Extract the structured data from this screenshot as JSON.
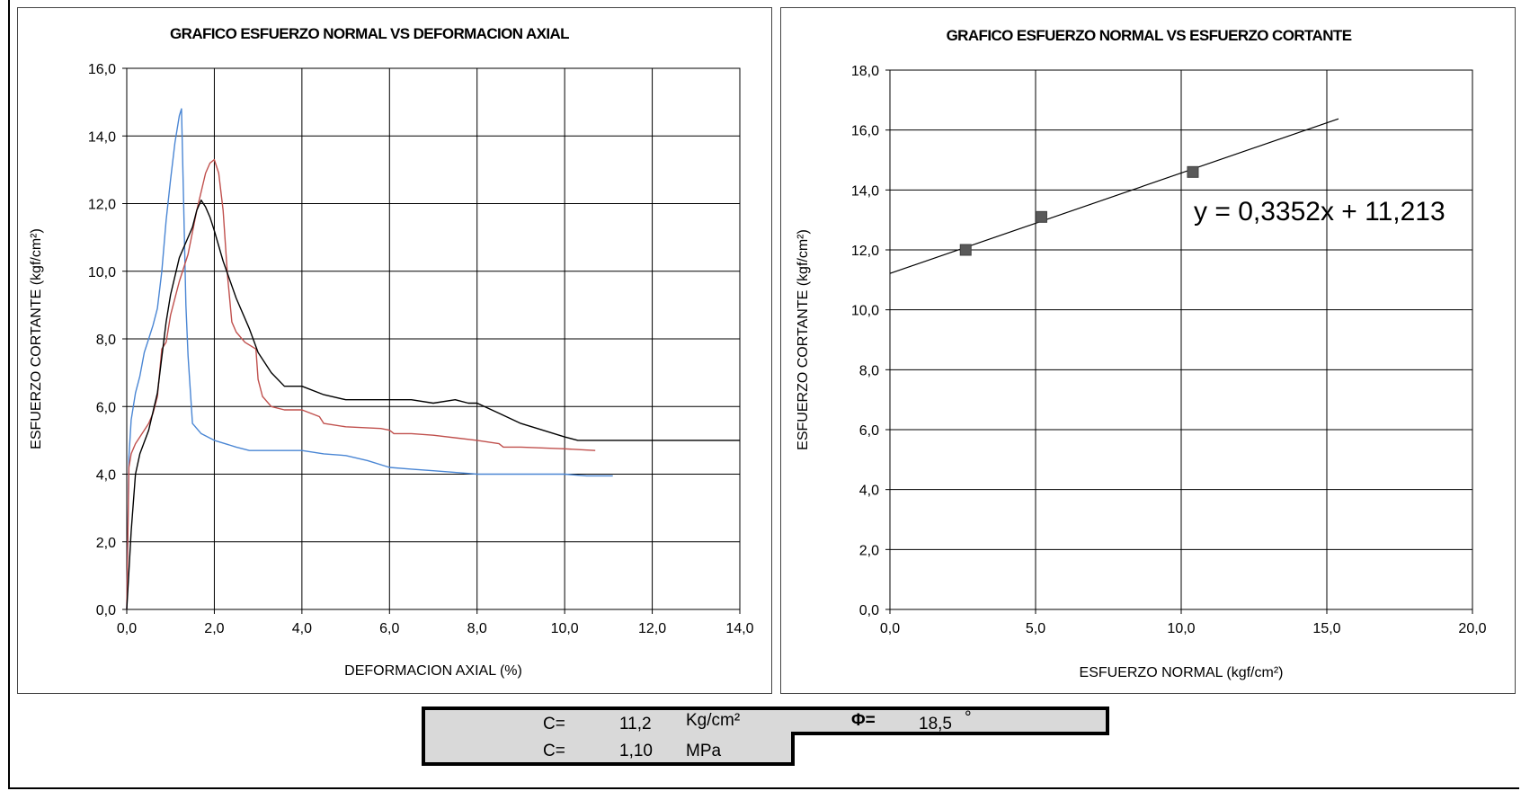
{
  "chart_data": [
    {
      "type": "line",
      "title": "GRAFICO ESFUERZO NORMAL VS DEFORMACION AXIAL",
      "xlabel": "DEFORMACION AXIAL (%)",
      "ylabel": "ESFUERZO CORTANTE (kgf/cm²)",
      "xlim": [
        0,
        14
      ],
      "ylim": [
        0,
        16
      ],
      "xticks": [
        "0,0",
        "2,0",
        "4,0",
        "6,0",
        "8,0",
        "10,0",
        "12,0",
        "14,0"
      ],
      "yticks": [
        "0,0",
        "2,0",
        "4,0",
        "6,0",
        "8,0",
        "10,0",
        "12,0",
        "14,0",
        "16,0"
      ],
      "grid": true,
      "series": [
        {
          "color": "#4a86d4",
          "x": [
            0,
            0.05,
            0.1,
            0.2,
            0.3,
            0.4,
            0.5,
            0.6,
            0.7,
            0.8,
            0.9,
            1.0,
            1.1,
            1.2,
            1.25,
            1.3,
            1.35,
            1.4,
            1.5,
            1.6,
            1.7,
            2.0,
            2.5,
            2.8,
            3.0,
            3.5,
            4.0,
            4.5,
            5.0,
            5.5,
            6.0,
            6.5,
            7.0,
            7.5,
            8.0,
            9.0,
            10.0,
            10.5,
            11.1
          ],
          "y": [
            0,
            4.5,
            5.6,
            6.4,
            6.9,
            7.6,
            8.0,
            8.4,
            8.9,
            10.0,
            11.5,
            12.7,
            13.8,
            14.6,
            14.8,
            12.0,
            9.0,
            7.5,
            5.5,
            5.35,
            5.2,
            5.0,
            4.8,
            4.7,
            4.7,
            4.7,
            4.7,
            4.6,
            4.55,
            4.4,
            4.2,
            4.15,
            4.1,
            4.05,
            4.0,
            4.0,
            4.0,
            3.95,
            3.95
          ]
        },
        {
          "color": "#c0504d",
          "x": [
            0,
            0.05,
            0.1,
            0.2,
            0.3,
            0.4,
            0.5,
            0.6,
            0.7,
            0.8,
            0.9,
            1.0,
            1.2,
            1.4,
            1.6,
            1.8,
            1.9,
            2.0,
            2.1,
            2.2,
            2.3,
            2.4,
            2.5,
            2.7,
            2.95,
            3.0,
            3.1,
            3.3,
            3.6,
            4.0,
            4.4,
            4.5,
            5.0,
            5.8,
            6.0,
            6.1,
            6.5,
            7.0,
            8.0,
            8.5,
            8.6,
            9.0,
            10.0,
            10.7
          ],
          "y": [
            0,
            4.2,
            4.6,
            4.9,
            5.1,
            5.3,
            5.5,
            5.8,
            6.3,
            7.7,
            7.9,
            8.7,
            9.7,
            10.5,
            11.8,
            12.9,
            13.2,
            13.3,
            12.9,
            11.8,
            9.9,
            8.5,
            8.2,
            7.9,
            7.7,
            6.8,
            6.3,
            6.0,
            5.9,
            5.9,
            5.7,
            5.5,
            5.4,
            5.35,
            5.3,
            5.2,
            5.2,
            5.15,
            5.0,
            4.9,
            4.8,
            4.8,
            4.75,
            4.7
          ]
        },
        {
          "color": "#000000",
          "x": [
            0,
            0.1,
            0.2,
            0.3,
            0.5,
            0.7,
            0.9,
            1.0,
            1.2,
            1.4,
            1.5,
            1.6,
            1.7,
            1.8,
            1.9,
            2.0,
            2.2,
            2.5,
            2.8,
            3.0,
            3.3,
            3.6,
            4.0,
            4.5,
            5.0,
            5.5,
            6.0,
            6.5,
            7.0,
            7.5,
            7.8,
            8.0,
            8.5,
            9.0,
            9.5,
            10.0,
            10.3,
            11.0,
            12.0,
            13.0,
            14.0
          ],
          "y": [
            0,
            2.3,
            4.0,
            4.6,
            5.3,
            6.4,
            8.5,
            9.3,
            10.4,
            11.0,
            11.3,
            11.8,
            12.1,
            11.9,
            11.6,
            11.2,
            10.3,
            9.2,
            8.3,
            7.6,
            7.0,
            6.6,
            6.6,
            6.35,
            6.2,
            6.2,
            6.2,
            6.2,
            6.1,
            6.2,
            6.1,
            6.1,
            5.8,
            5.5,
            5.3,
            5.1,
            5.0,
            5.0,
            5.0,
            5.0,
            5.0
          ]
        }
      ]
    },
    {
      "type": "scatter",
      "title": "GRAFICO ESFUERZO NORMAL VS ESFUERZO CORTANTE",
      "xlabel": "ESFUERZO NORMAL (kgf/cm²)",
      "ylabel": "ESFUERZO CORTANTE (kgf/cm²)",
      "xlim": [
        0,
        20
      ],
      "ylim": [
        0,
        18
      ],
      "xticks": [
        "0,0",
        "5,0",
        "10,0",
        "15,0",
        "20,0"
      ],
      "yticks": [
        "0,0",
        "2,0",
        "4,0",
        "6,0",
        "8,0",
        "10,0",
        "12,0",
        "14,0",
        "16,0",
        "18,0"
      ],
      "grid": true,
      "points": {
        "color": "#595959",
        "x": [
          2.6,
          5.2,
          10.4
        ],
        "y": [
          12.0,
          13.1,
          14.6
        ]
      },
      "trendline": {
        "slope": 0.3352,
        "intercept": 11.213,
        "x_end": 15.4,
        "equation": "y = 0,3352x + 11,213"
      }
    }
  ],
  "results": {
    "c_label_1": "C=",
    "c_value_1": "11,2",
    "c_unit_1": "Kg/cm²",
    "phi_label": "Φ=",
    "phi_value": "18,5",
    "phi_unit": "°",
    "c_label_2": "C=",
    "c_value_2": "1,10",
    "c_unit_2": "MPa"
  }
}
